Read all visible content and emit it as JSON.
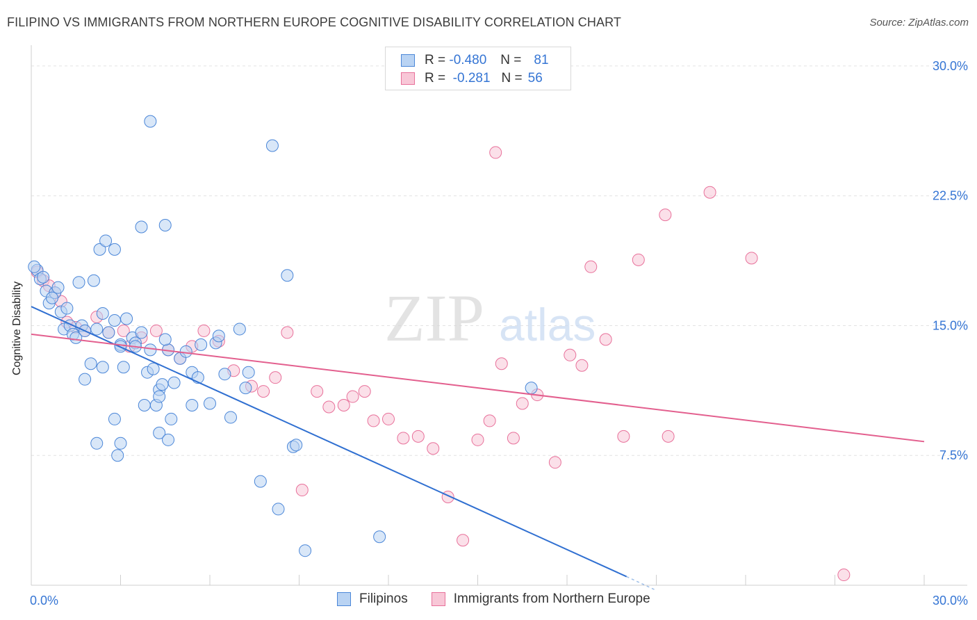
{
  "title": "FILIPINO VS IMMIGRANTS FROM NORTHERN EUROPE COGNITIVE DISABILITY CORRELATION CHART",
  "source": "Source: ZipAtlas.com",
  "watermark": {
    "zip": "ZIP",
    "atlas": "atlas"
  },
  "legend_top": {
    "rows": [
      {
        "r_label": "R =",
        "r_value": "-0.480",
        "n_label": "N =",
        "n_value": "81"
      },
      {
        "r_label": "R =",
        "r_value": "-0.281",
        "n_label": "N =",
        "n_value": "56"
      }
    ]
  },
  "legend_bottom": {
    "series1": "Filipinos",
    "series2": "Immigrants from Northern Europe"
  },
  "chart_data": {
    "type": "scatter",
    "ylabel": "Cognitive Disability",
    "xlabel": "",
    "x_tick_labels": [
      "0.0%",
      "30.0%"
    ],
    "y_tick_labels": [
      "30.0%",
      "22.5%",
      "15.0%",
      "7.5%"
    ],
    "xlim": [
      0,
      30
    ],
    "ylim": [
      0,
      30.8
    ],
    "y_ticks": [
      30,
      22.5,
      15,
      7.5
    ],
    "grid": "horizontal dashed",
    "legend_position": "top-center",
    "colors": {
      "series1": "#4a86d8",
      "series1_fill": "#b9d3f3",
      "series2": "#e8709a",
      "series2_fill": "#f8c7d7"
    },
    "series": [
      {
        "name": "Filipinos",
        "trend": {
          "x": [
            0,
            20.0
          ],
          "y": [
            16.1,
            0.5
          ]
        },
        "points": [
          [
            0.2,
            18.2
          ],
          [
            0.3,
            17.7
          ],
          [
            0.5,
            17.0
          ],
          [
            0.6,
            16.3
          ],
          [
            0.8,
            16.9
          ],
          [
            0.7,
            16.6
          ],
          [
            1.0,
            15.8
          ],
          [
            1.1,
            14.8
          ],
          [
            1.3,
            15.0
          ],
          [
            1.4,
            14.5
          ],
          [
            1.5,
            14.3
          ],
          [
            1.7,
            15.0
          ],
          [
            1.8,
            14.7
          ],
          [
            1.2,
            16.0
          ],
          [
            0.9,
            17.2
          ],
          [
            0.4,
            17.8
          ],
          [
            1.6,
            17.5
          ],
          [
            2.1,
            17.6
          ],
          [
            2.3,
            19.4
          ],
          [
            2.5,
            19.9
          ],
          [
            2.2,
            14.8
          ],
          [
            2.4,
            15.7
          ],
          [
            2.6,
            14.6
          ],
          [
            2.8,
            15.3
          ],
          [
            3.0,
            13.9
          ],
          [
            3.2,
            15.4
          ],
          [
            3.4,
            14.3
          ],
          [
            3.5,
            14.0
          ],
          [
            3.7,
            14.6
          ],
          [
            2.0,
            12.8
          ],
          [
            2.4,
            12.6
          ],
          [
            3.1,
            12.6
          ],
          [
            3.5,
            13.8
          ],
          [
            3.9,
            12.3
          ],
          [
            4.1,
            12.5
          ],
          [
            4.3,
            11.3
          ],
          [
            4.4,
            11.6
          ],
          [
            4.0,
            13.6
          ],
          [
            4.6,
            13.6
          ],
          [
            5.0,
            13.1
          ],
          [
            5.2,
            13.5
          ],
          [
            4.8,
            11.7
          ],
          [
            5.4,
            12.3
          ],
          [
            5.6,
            12.0
          ],
          [
            4.7,
            9.6
          ],
          [
            4.2,
            10.4
          ],
          [
            4.3,
            10.9
          ],
          [
            3.8,
            10.4
          ],
          [
            4.3,
            8.8
          ],
          [
            4.6,
            8.4
          ],
          [
            5.4,
            10.4
          ],
          [
            6.0,
            10.5
          ],
          [
            6.7,
            9.7
          ],
          [
            6.5,
            12.2
          ],
          [
            7.3,
            12.3
          ],
          [
            7.0,
            14.8
          ],
          [
            5.7,
            13.9
          ],
          [
            6.2,
            14.0
          ],
          [
            7.2,
            11.4
          ],
          [
            6.3,
            14.4
          ],
          [
            3.7,
            20.7
          ],
          [
            4.5,
            20.8
          ],
          [
            3.0,
            13.8
          ],
          [
            4.5,
            14.2
          ],
          [
            2.2,
            8.2
          ],
          [
            1.8,
            11.9
          ],
          [
            2.8,
            9.6
          ],
          [
            3.0,
            8.2
          ],
          [
            2.9,
            7.5
          ],
          [
            2.8,
            19.4
          ],
          [
            4.0,
            26.8
          ],
          [
            8.1,
            25.4
          ],
          [
            8.8,
            8.0
          ],
          [
            8.9,
            8.1
          ],
          [
            9.2,
            2.0
          ],
          [
            8.3,
            4.4
          ],
          [
            7.7,
            6.0
          ],
          [
            8.6,
            17.9
          ],
          [
            11.7,
            2.8
          ],
          [
            16.8,
            11.4
          ],
          [
            0.1,
            18.4
          ]
        ]
      },
      {
        "name": "Immigrants from Northern Europe",
        "trend": {
          "x": [
            0,
            30.0
          ],
          "y": [
            14.5,
            8.3
          ]
        },
        "points": [
          [
            0.2,
            18.1
          ],
          [
            0.4,
            17.6
          ],
          [
            0.6,
            17.3
          ],
          [
            0.8,
            16.9
          ],
          [
            1.0,
            16.4
          ],
          [
            1.2,
            15.2
          ],
          [
            1.5,
            14.9
          ],
          [
            1.8,
            14.7
          ],
          [
            2.2,
            15.5
          ],
          [
            2.6,
            14.6
          ],
          [
            3.1,
            14.7
          ],
          [
            3.3,
            13.8
          ],
          [
            3.7,
            14.3
          ],
          [
            4.2,
            14.7
          ],
          [
            4.6,
            13.6
          ],
          [
            5.0,
            13.1
          ],
          [
            5.4,
            13.8
          ],
          [
            5.8,
            14.7
          ],
          [
            6.3,
            14.1
          ],
          [
            6.8,
            12.4
          ],
          [
            7.4,
            11.5
          ],
          [
            7.8,
            11.2
          ],
          [
            8.2,
            12.0
          ],
          [
            8.6,
            14.6
          ],
          [
            9.1,
            5.5
          ],
          [
            9.6,
            11.2
          ],
          [
            10.0,
            10.3
          ],
          [
            10.5,
            10.4
          ],
          [
            10.8,
            10.9
          ],
          [
            11.2,
            11.2
          ],
          [
            11.5,
            9.5
          ],
          [
            12.0,
            9.6
          ],
          [
            12.5,
            8.5
          ],
          [
            13.0,
            8.6
          ],
          [
            13.5,
            7.9
          ],
          [
            14.0,
            5.1
          ],
          [
            14.5,
            2.6
          ],
          [
            15.0,
            8.4
          ],
          [
            15.4,
            9.5
          ],
          [
            15.8,
            12.8
          ],
          [
            16.2,
            8.5
          ],
          [
            16.5,
            10.5
          ],
          [
            17.0,
            11.0
          ],
          [
            17.6,
            7.1
          ],
          [
            18.1,
            13.3
          ],
          [
            18.5,
            12.7
          ],
          [
            18.8,
            18.4
          ],
          [
            19.3,
            14.2
          ],
          [
            19.9,
            8.6
          ],
          [
            20.4,
            18.8
          ],
          [
            21.4,
            8.6
          ],
          [
            21.3,
            21.4
          ],
          [
            22.8,
            22.7
          ],
          [
            24.2,
            18.9
          ],
          [
            15.6,
            25.0
          ],
          [
            27.3,
            0.6
          ]
        ]
      }
    ]
  }
}
